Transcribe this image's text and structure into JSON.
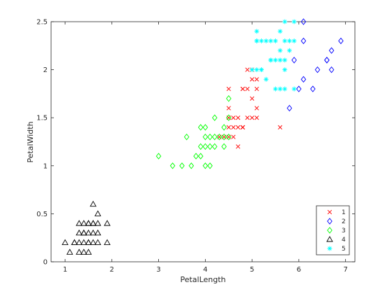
{
  "chart_data": {
    "type": "scatter",
    "title": "",
    "xlabel": "PetalLength",
    "ylabel": "PetalWidth",
    "xlim": [
      0.7,
      7.2
    ],
    "ylim": [
      0,
      2.5
    ],
    "xticks": [
      1,
      2,
      3,
      4,
      5,
      6,
      7
    ],
    "yticks": [
      0,
      0.5,
      1,
      1.5,
      2,
      2.5
    ],
    "xtick_labels": [
      "1",
      "2",
      "3",
      "4",
      "5",
      "6",
      "7"
    ],
    "ytick_labels": [
      "0",
      "0.5",
      "1",
      "1.5",
      "2",
      "2.5"
    ],
    "grid": false,
    "legend_position": "bottom-right",
    "series": [
      {
        "name": "1",
        "marker": "x",
        "color": "#ff0000",
        "x": [
          4.5,
          4.5,
          4.6,
          4.7,
          4.8,
          4.8,
          4.9,
          5.0,
          5.0,
          5.1,
          5.1,
          4.5,
          4.7,
          4.9,
          5.0,
          5.1,
          4.6,
          4.7,
          4.8,
          4.9,
          5.0,
          5.1,
          4.4,
          4.5,
          4.3,
          4.5,
          4.6,
          4.8,
          5.6,
          4.8
        ],
        "y": [
          1.5,
          1.6,
          1.5,
          1.4,
          1.8,
          1.4,
          1.5,
          1.7,
          1.5,
          1.6,
          1.5,
          1.4,
          1.5,
          1.8,
          1.9,
          1.8,
          1.4,
          1.2,
          1.4,
          2.0,
          2.0,
          1.9,
          1.3,
          1.3,
          1.3,
          1.8,
          1.3,
          1.8,
          1.4,
          1.4
        ]
      },
      {
        "name": "2",
        "marker": "diamond-open",
        "color": "#0000ff",
        "x": [
          6.1,
          6.9,
          6.7,
          6.6,
          6.7,
          6.1,
          5.9,
          5.8,
          6.1,
          6.4,
          6.0,
          6.3,
          6.6
        ],
        "y": [
          2.5,
          2.3,
          2.2,
          2.1,
          2.0,
          2.3,
          2.1,
          1.6,
          1.9,
          2.0,
          1.8,
          1.8,
          2.1
        ]
      },
      {
        "name": "3",
        "marker": "diamond-open",
        "color": "#00ff00",
        "x": [
          3.0,
          3.3,
          3.5,
          3.7,
          3.8,
          3.9,
          4.0,
          4.1,
          3.9,
          4.0,
          4.1,
          4.2,
          4.2,
          4.4,
          4.0,
          4.1,
          4.4,
          4.5,
          4.5,
          3.9,
          4.0,
          4.2,
          4.3,
          4.4,
          3.6,
          4.5
        ],
        "y": [
          1.1,
          1.0,
          1.0,
          1.0,
          1.1,
          1.1,
          1.0,
          1.0,
          1.2,
          1.2,
          1.2,
          1.2,
          1.3,
          1.3,
          1.3,
          1.3,
          1.2,
          1.3,
          1.7,
          1.4,
          1.4,
          1.5,
          1.3,
          1.4,
          1.3,
          1.5
        ]
      },
      {
        "name": "4",
        "marker": "triangle-open",
        "color": "#000000",
        "x": [
          1.0,
          1.1,
          1.2,
          1.3,
          1.4,
          1.5,
          1.6,
          1.7,
          1.9,
          1.3,
          1.4,
          1.5,
          1.6,
          1.7,
          1.2,
          1.3,
          1.4,
          1.5,
          1.6,
          1.7,
          1.9,
          1.3,
          1.4,
          1.5,
          1.4,
          1.5,
          1.6,
          1.7,
          1.6,
          1.5
        ],
        "y": [
          0.2,
          0.1,
          0.2,
          0.2,
          0.2,
          0.2,
          0.2,
          0.2,
          0.2,
          0.3,
          0.3,
          0.3,
          0.4,
          0.4,
          0.2,
          0.4,
          0.4,
          0.4,
          0.3,
          0.3,
          0.4,
          0.1,
          0.1,
          0.1,
          0.3,
          0.2,
          0.6,
          0.5,
          0.4,
          0.4
        ]
      },
      {
        "name": "5",
        "marker": "star",
        "color": "#00ffff",
        "x": [
          5.1,
          5.2,
          5.3,
          5.4,
          5.5,
          5.6,
          5.7,
          5.8,
          5.1,
          5.4,
          5.7,
          5.9,
          5.0,
          5.2,
          5.4,
          5.5,
          5.6,
          5.7,
          5.9,
          5.1,
          5.3,
          5.7,
          5.6,
          5.9,
          5.5,
          5.8,
          5.6,
          5.1,
          5.2,
          5.7
        ],
        "y": [
          2.3,
          2.3,
          2.3,
          2.3,
          2.1,
          2.1,
          2.1,
          2.2,
          2.4,
          2.1,
          2.3,
          2.3,
          2.0,
          2.0,
          2.1,
          1.8,
          1.8,
          1.8,
          1.8,
          2.0,
          1.9,
          2.5,
          2.4,
          2.5,
          2.3,
          2.3,
          2.2,
          2.3,
          2.0,
          2.0
        ]
      }
    ]
  }
}
